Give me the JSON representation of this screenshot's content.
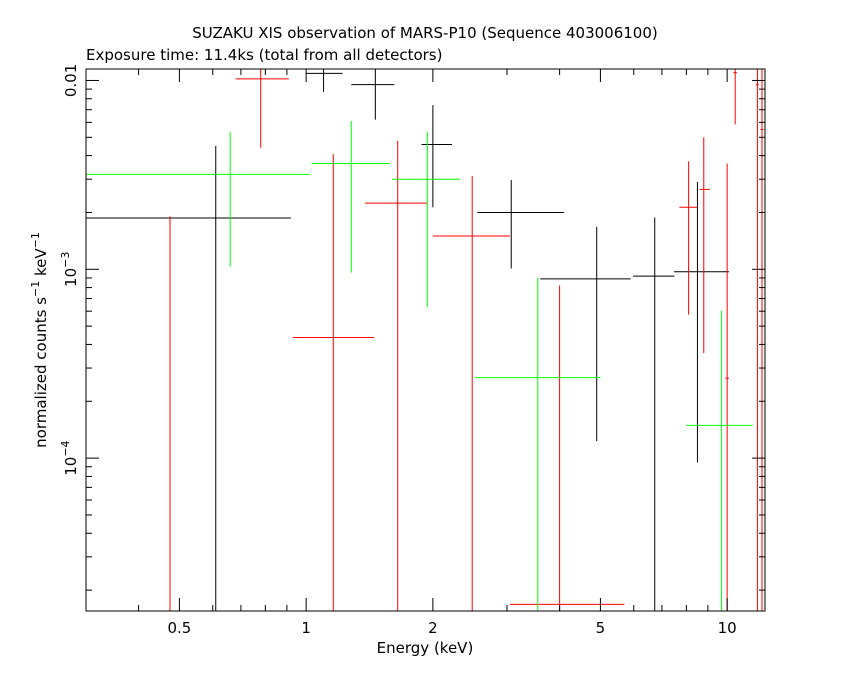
{
  "chart_data": {
    "type": "scatter",
    "title": "SUZAKU XIS observation of MARS-P10 (Sequence 403006100)",
    "subtitle": "Exposure time: 11.4ks (total from all detectors)",
    "xlabel": "Energy (keV)",
    "ylabel": {
      "base": "normalized counts s",
      "exp1": "−1",
      "mid": " keV",
      "exp2": "−1"
    },
    "x_scale": "log",
    "y_scale": "log",
    "xlim": [
      0.3,
      12.3
    ],
    "ylim": [
      1.55e-05,
      0.0115
    ],
    "x_ticks": [
      {
        "value": 0.5,
        "label": "0.5"
      },
      {
        "value": 1,
        "label": "1"
      },
      {
        "value": 2,
        "label": "2"
      },
      {
        "value": 5,
        "label": "5"
      },
      {
        "value": 10,
        "label": "10"
      }
    ],
    "y_ticks": [
      {
        "value": 0.0001,
        "base": "10",
        "exp": "−4"
      },
      {
        "value": 0.001,
        "base": "10",
        "exp": "−3"
      },
      {
        "value": 0.01,
        "label": "0.01"
      }
    ],
    "grid": false,
    "legend": "none",
    "series": [
      {
        "color": "#000000",
        "points": [
          {
            "x": 0.61,
            "xerr": [
              0.3,
              0.92
            ],
            "y": 0.00187,
            "yerr": [
              1.55e-05,
              0.0045
            ]
          },
          {
            "x": 1.1,
            "xerr": [
              1.0,
              1.22
            ],
            "y": 0.0109,
            "yerr": [
              0.0087,
              0.0115
            ]
          },
          {
            "x": 1.46,
            "xerr": [
              1.28,
              1.62
            ],
            "y": 0.0095,
            "yerr": [
              0.0062,
              0.0115
            ]
          },
          {
            "x": 2.0,
            "xerr": [
              1.88,
              2.22
            ],
            "y": 0.00458,
            "yerr": [
              0.00213,
              0.0074
            ]
          },
          {
            "x": 3.07,
            "xerr": [
              2.55,
              4.1
            ],
            "y": 0.002,
            "yerr": [
              0.00101,
              0.00297
            ]
          },
          {
            "x": 4.9,
            "xerr": [
              3.6,
              5.9
            ],
            "y": 0.00089,
            "yerr": [
              0.000123,
              0.00168
            ]
          },
          {
            "x": 6.73,
            "xerr": [
              5.98,
              7.5
            ],
            "y": 0.00092,
            "yerr": [
              1.55e-05,
              0.00188
            ]
          },
          {
            "x": 8.5,
            "xerr": [
              7.48,
              10.1
            ],
            "y": 0.00097,
            "yerr": [
              9.5e-05,
              0.0029
            ]
          }
        ]
      },
      {
        "color": "#ff0000",
        "points": [
          {
            "x": 0.475,
            "xerr": [
              0.475,
              0.475
            ],
            "y": 1.55e-05,
            "yerr": [
              1.55e-05,
              0.00191
            ]
          },
          {
            "x": 0.78,
            "xerr": [
              0.68,
              0.91
            ],
            "y": 0.0102,
            "yerr": [
              0.0044,
              0.0115
            ]
          },
          {
            "x": 1.16,
            "xerr": [
              0.93,
              1.45
            ],
            "y": 0.000435,
            "yerr": [
              1.55e-05,
              0.00407
            ]
          },
          {
            "x": 1.65,
            "xerr": [
              1.38,
              1.94
            ],
            "y": 0.00224,
            "yerr": [
              1.55e-05,
              0.00478
            ]
          },
          {
            "x": 2.48,
            "xerr": [
              2.0,
              3.05
            ],
            "y": 0.0015,
            "yerr": [
              1.55e-05,
              0.00312
            ]
          },
          {
            "x": 4.0,
            "xerr": [
              3.05,
              5.7
            ],
            "y": 1.68e-05,
            "yerr": [
              1.55e-05,
              0.00082
            ]
          },
          {
            "x": 8.1,
            "xerr": [
              7.7,
              8.5
            ],
            "y": 0.00213,
            "yerr": [
              0.000575,
              0.00373
            ]
          },
          {
            "x": 8.8,
            "xerr": [
              8.6,
              9.1
            ],
            "y": 0.00265,
            "yerr": [
              0.00036,
              0.005
            ]
          },
          {
            "x": 10.0,
            "xerr": [
              9.9,
              10.1
            ],
            "y": 0.000265,
            "yerr": [
              1.55e-05,
              0.00363
            ]
          },
          {
            "x": 10.45,
            "xerr": [
              10.35,
              10.55
            ],
            "y": 0.011,
            "yerr": [
              0.00585,
              0.0115
            ]
          },
          {
            "x": 11.8,
            "xerr": [
              11.7,
              11.9
            ],
            "y": 0.0095,
            "yerr": [
              1.55e-05,
              0.0115
            ]
          },
          {
            "x": 12.1,
            "xerr": [
              12.0,
              12.2
            ],
            "y": 0.0055,
            "yerr": [
              1.55e-05,
              0.0115
            ]
          }
        ]
      },
      {
        "color": "#00ff00",
        "points": [
          {
            "x": 0.66,
            "xerr": [
              0.3,
              1.02
            ],
            "y": 0.00318,
            "yerr": [
              0.00103,
              0.00535
            ]
          },
          {
            "x": 1.28,
            "xerr": [
              1.03,
              1.58
            ],
            "y": 0.00363,
            "yerr": [
              0.00096,
              0.0061
            ]
          },
          {
            "x": 1.94,
            "xerr": [
              1.6,
              2.32
            ],
            "y": 0.003,
            "yerr": [
              0.00063,
              0.00534
            ]
          },
          {
            "x": 3.55,
            "xerr": [
              2.52,
              5.0
            ],
            "y": 0.000267,
            "yerr": [
              1.55e-05,
              0.0009
            ]
          },
          {
            "x": 9.7,
            "xerr": [
              8.0,
              11.5
            ],
            "y": 0.000149,
            "yerr": [
              1.55e-05,
              0.000602
            ]
          }
        ]
      }
    ]
  }
}
